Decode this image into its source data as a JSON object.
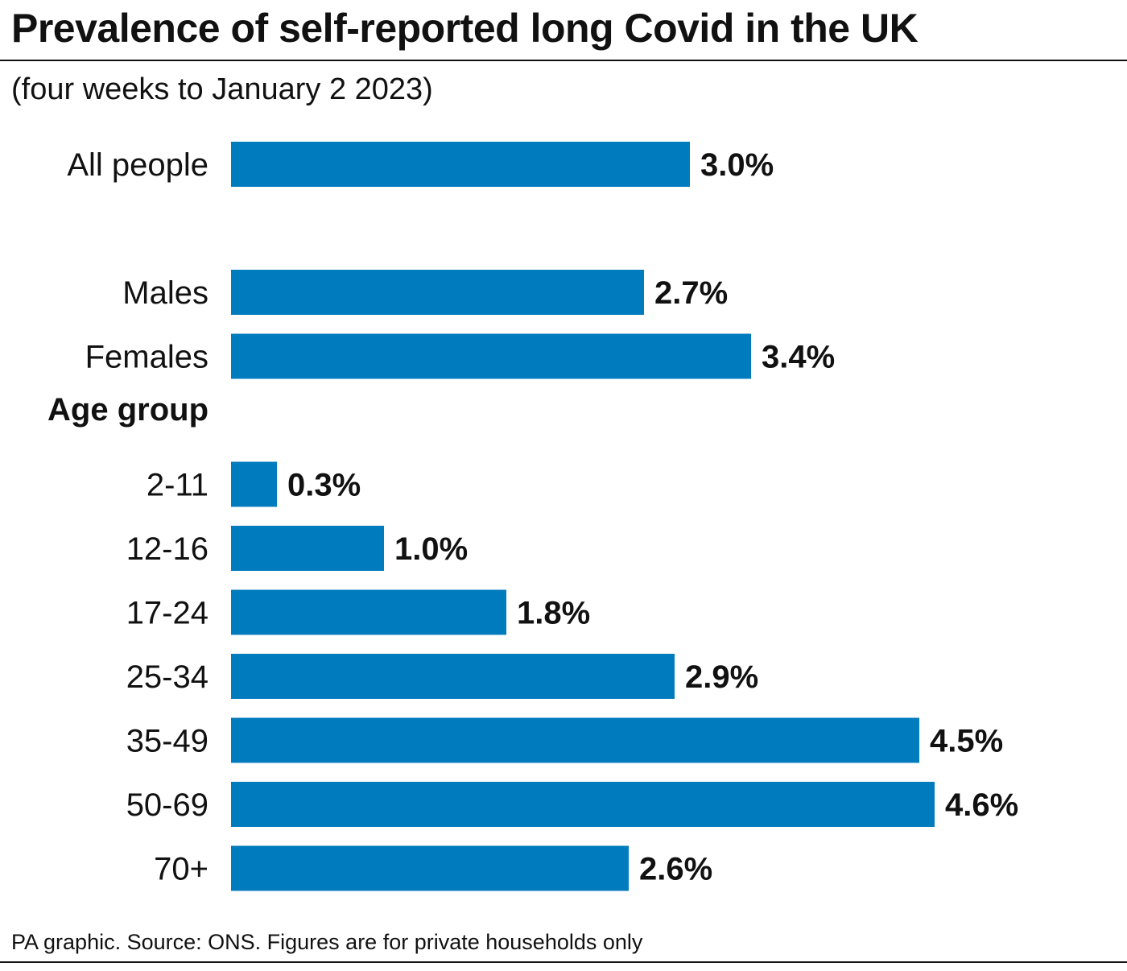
{
  "title": "Prevalence of self-reported long Covid in the UK",
  "subtitle": "(four weeks to January 2 2023)",
  "footer": "PA graphic. Source: ONS. Figures are for private households only",
  "colors": {
    "bar": "#007bbd",
    "text": "#111111"
  },
  "chart_data": {
    "type": "bar",
    "orientation": "horizontal",
    "unit": "%",
    "xlim": [
      0,
      4.6
    ],
    "grid": false,
    "groups": [
      {
        "heading": "",
        "categories": [
          "All people"
        ],
        "values": [
          3.0
        ],
        "value_labels": [
          "3.0%"
        ]
      },
      {
        "heading": "",
        "categories": [
          "Males",
          "Females"
        ],
        "values": [
          2.7,
          3.4
        ],
        "value_labels": [
          "2.7%",
          "3.4%"
        ]
      },
      {
        "heading": "Age group",
        "categories": [
          "2-11",
          "12-16",
          "17-24",
          "25-34",
          "35-49",
          "50-69",
          "70+"
        ],
        "values": [
          0.3,
          1.0,
          1.8,
          2.9,
          4.5,
          4.6,
          2.6
        ],
        "value_labels": [
          "0.3%",
          "1.0%",
          "1.8%",
          "2.9%",
          "4.5%",
          "4.6%",
          "2.6%"
        ]
      }
    ]
  }
}
